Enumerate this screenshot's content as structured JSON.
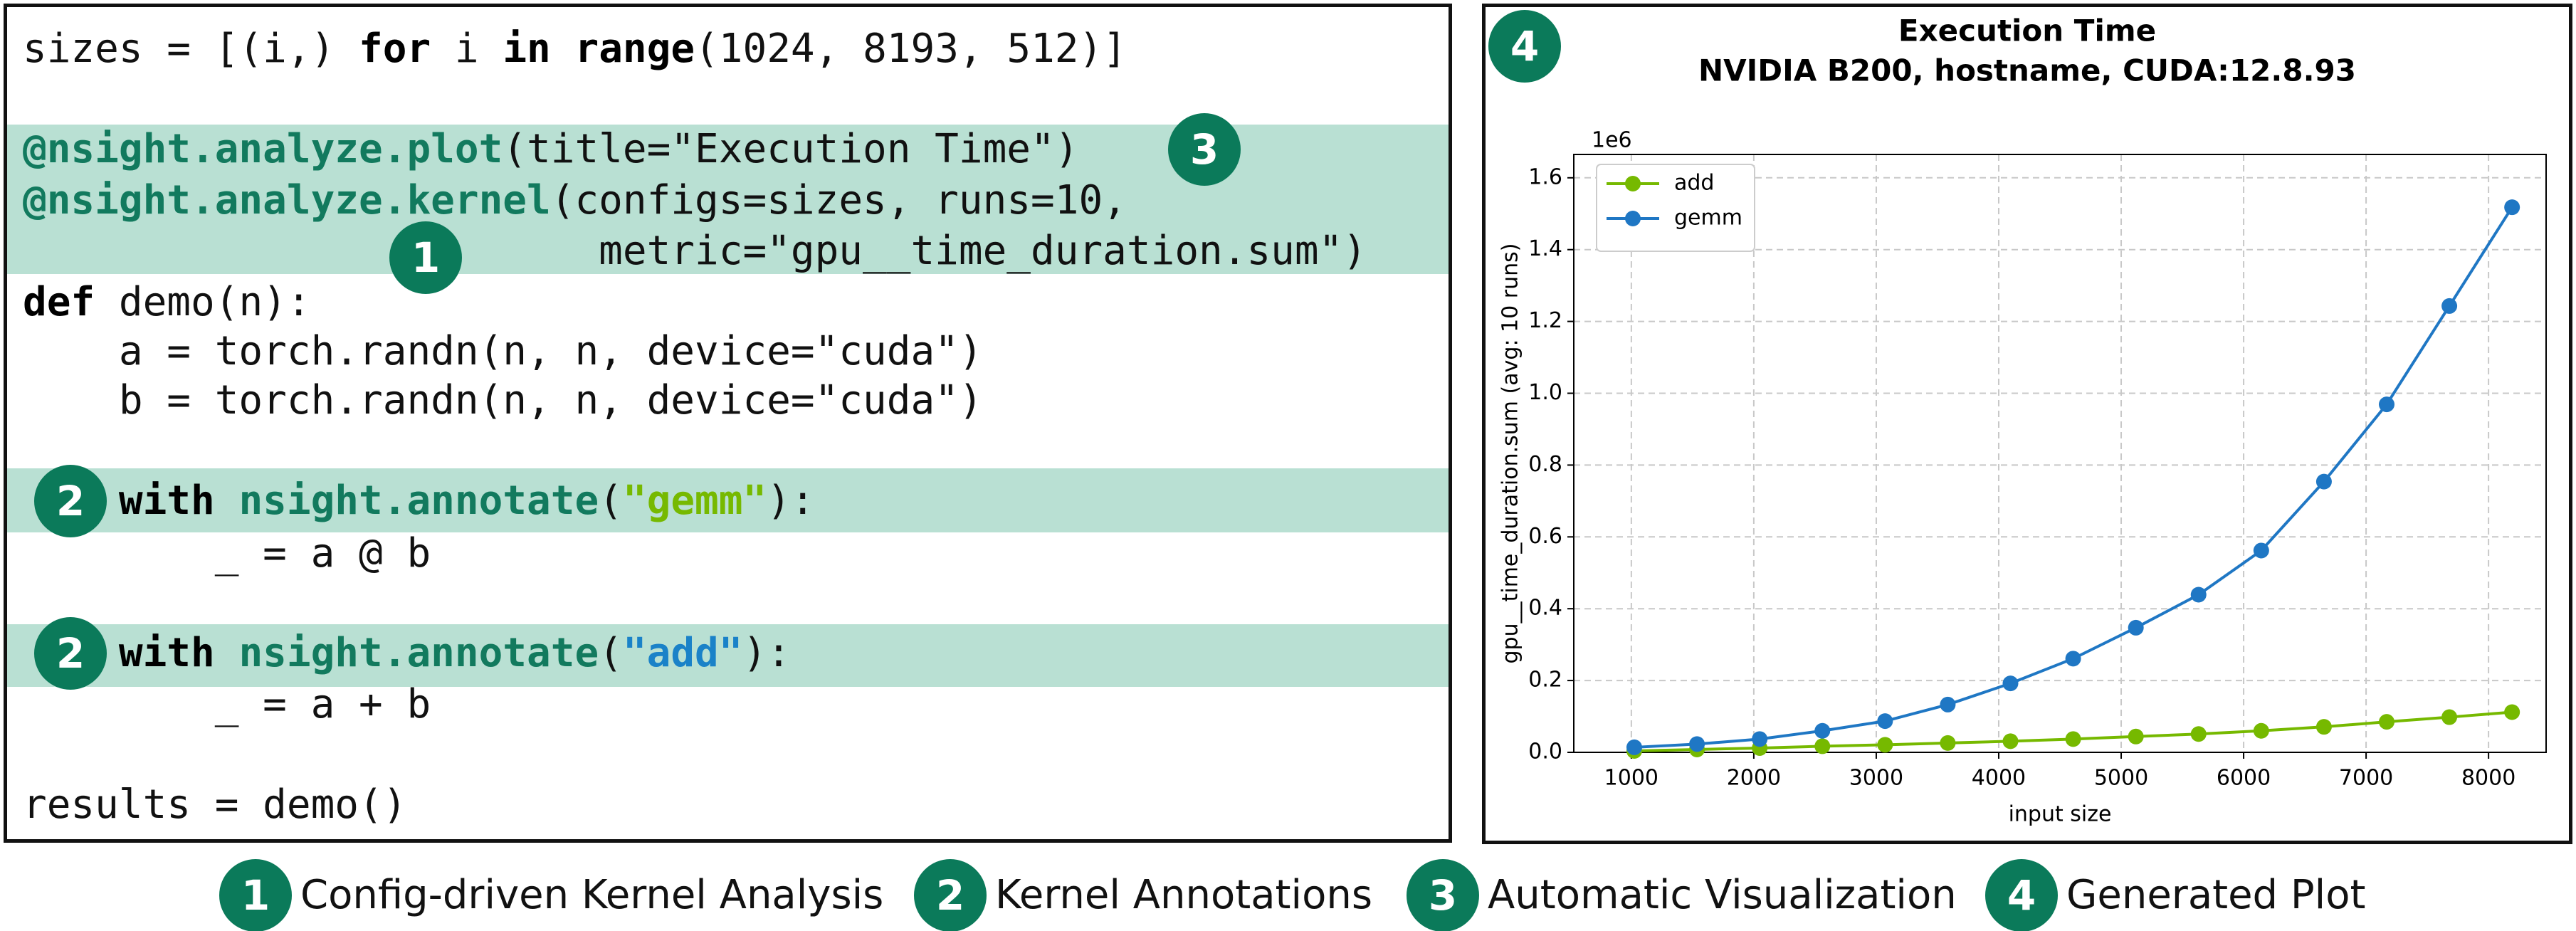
{
  "code": {
    "lines": [
      [
        "sizes = [(i,) ",
        "for",
        " i ",
        "in",
        " ",
        "range",
        "(1024, 8193, 512)]"
      ],
      [
        "@nsight.analyze.plot",
        "(title=\"Execution Time\")"
      ],
      [
        "@nsight.analyze.kernel",
        "(configs=sizes, runs=10,"
      ],
      [
        "metric=\"gpu__time_duration.sum\")"
      ],
      [
        "def",
        " demo(n):"
      ],
      [
        "a = torch.randn(n, n, device=\"cuda\")"
      ],
      [
        "b = torch.randn(n, n, device=\"cuda\")"
      ],
      [
        "with",
        " ",
        "nsight.annotate",
        "(",
        "\"gemm\"",
        "):"
      ],
      [
        "_ = a @ b"
      ],
      [
        "with",
        " ",
        "nsight.annotate",
        "(",
        "\"add\"",
        "):"
      ],
      [
        "_ = a + b"
      ],
      [
        "results = demo()"
      ]
    ],
    "callouts": [
      "3",
      "1",
      "2",
      "2"
    ]
  },
  "plot_callout": "4",
  "legend_items": [
    {
      "number": "1",
      "text": "Config-driven Kernel Analysis"
    },
    {
      "number": "2",
      "text": "Kernel Annotations"
    },
    {
      "number": "3",
      "text": "Automatic Visualization"
    },
    {
      "number": "4",
      "text": "Generated Plot"
    }
  ],
  "chart_data": {
    "type": "line",
    "title": "Execution Time",
    "subtitle": "NVIDIA B200, hostname, CUDA:12.8.93",
    "x_label": "input size",
    "y_label": "gpu__time_duration.sum (avg: 10 runs)",
    "y_offset_label": "1e6",
    "x": [
      1024,
      1536,
      2048,
      2560,
      3072,
      3584,
      4096,
      4608,
      5120,
      5632,
      6144,
      6656,
      7168,
      7680,
      8192
    ],
    "series": [
      {
        "name": "add",
        "color": "#76b900",
        "values": [
          0.004,
          0.008,
          0.012,
          0.017,
          0.021,
          0.026,
          0.031,
          0.037,
          0.044,
          0.051,
          0.06,
          0.071,
          0.085,
          0.098,
          0.112
        ]
      },
      {
        "name": "gemm",
        "color": "#1f77c4",
        "values": [
          0.014,
          0.023,
          0.037,
          0.06,
          0.087,
          0.133,
          0.192,
          0.261,
          0.347,
          0.439,
          0.562,
          0.754,
          0.969,
          1.243,
          1.518
        ]
      }
    ],
    "xlim": [
      530,
      8470
    ],
    "ylim": [
      0,
      1.665
    ],
    "xticks": [
      1000,
      2000,
      3000,
      4000,
      5000,
      6000,
      7000,
      8000
    ],
    "yticks": [
      {
        "value": 0,
        "label": "0.0"
      },
      {
        "value": 0.2,
        "label": "0.2"
      },
      {
        "value": 0.4,
        "label": "0.4"
      },
      {
        "value": 0.6,
        "label": "0.6"
      },
      {
        "value": 0.8,
        "label": "0.8"
      },
      {
        "value": 1.0,
        "label": "1.0"
      },
      {
        "value": 1.2,
        "label": "1.2"
      },
      {
        "value": 1.4,
        "label": "1.4"
      },
      {
        "value": 1.6,
        "label": "1.6"
      }
    ],
    "grid": true,
    "legend": "upper left"
  }
}
